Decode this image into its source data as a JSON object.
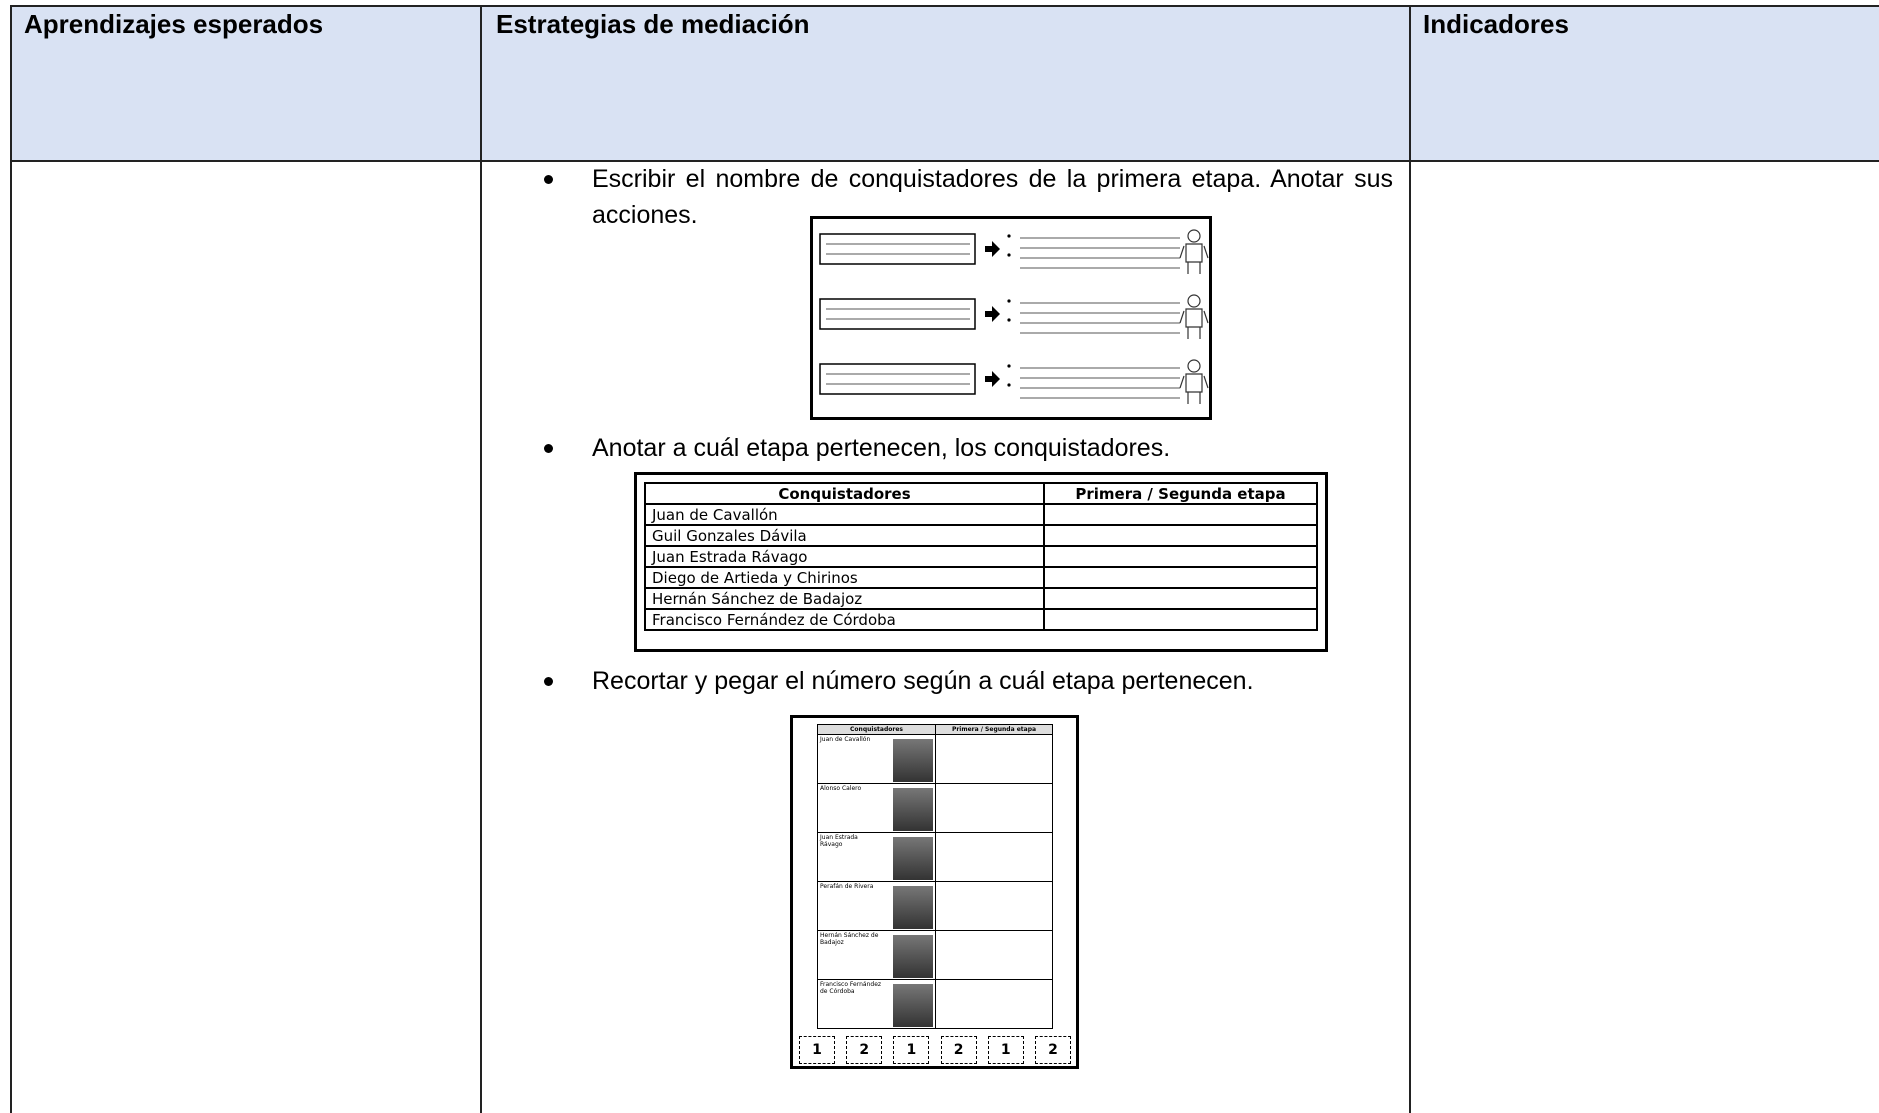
{
  "header": [
    "Aprendizajes esperados",
    "Estrategias de mediación",
    "Indicadores"
  ],
  "bullets": [
    "Escribir el nombre de conquistadores de la primera etapa. Anotar sus acciones.",
    "Anotar a cuál etapa pertenecen, los conquistadores.",
    "Recortar y pegar el número según a cuál etapa pertenecen."
  ],
  "conquerors_table": {
    "header": [
      "Conquistadores",
      "Primera / Segunda etapa"
    ],
    "rows": [
      "Juan de Cavallón",
      "Guil Gonzales Dávila",
      "Juan Estrada Rávago",
      "Diego de Artieda y Chirinos",
      "Hernán Sánchez de Badajoz",
      "Francisco Fernández de Córdoba"
    ]
  },
  "cut_sheet": {
    "header": [
      "Conquistadores",
      "Primera / Segunda etapa"
    ],
    "names": [
      "Juan de Cavallón",
      "Alonso Calero",
      "Juan Estrada Rávago",
      "Perafán de Rivera",
      "Hernán Sánchez de Badajoz",
      "Francisco Fernández de Córdoba"
    ],
    "numbers": [
      "1",
      "2",
      "1",
      "2",
      "1",
      "2"
    ]
  }
}
